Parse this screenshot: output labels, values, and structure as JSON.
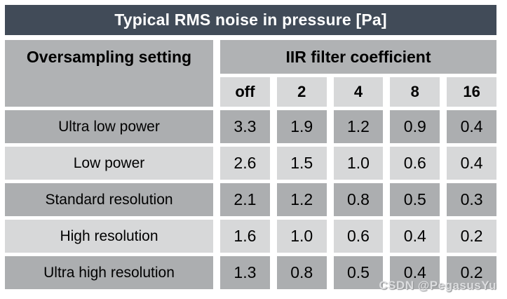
{
  "title": "Typical RMS noise in pressure [Pa]",
  "watermark": "CSDN @PegasusYu",
  "colors": {
    "title_bg": "#414b58",
    "title_text": "#ffffff",
    "header_bg": "#b0b2b4",
    "light_row_bg": "#d7d8d9",
    "dark_row_bg": "#acaeb0",
    "body_text": "#000000"
  },
  "chart_data": {
    "type": "table",
    "title": "Typical RMS noise in pressure [Pa]",
    "row_group_label": "Oversampling setting",
    "column_group_label": "IIR filter coefficient",
    "columns": [
      "off",
      "2",
      "4",
      "8",
      "16"
    ],
    "rows": [
      {
        "label": "Ultra low power",
        "values": [
          "3.3",
          "1.9",
          "1.2",
          "0.9",
          "0.4"
        ]
      },
      {
        "label": "Low power",
        "values": [
          "2.6",
          "1.5",
          "1.0",
          "0.6",
          "0.4"
        ]
      },
      {
        "label": "Standard resolution",
        "values": [
          "2.1",
          "1.2",
          "0.8",
          "0.5",
          "0.3"
        ]
      },
      {
        "label": "High resolution",
        "values": [
          "1.6",
          "1.0",
          "0.6",
          "0.4",
          "0.2"
        ]
      },
      {
        "label": "Ultra high resolution",
        "values": [
          "1.3",
          "0.8",
          "0.5",
          "0.4",
          "0.2"
        ]
      }
    ]
  }
}
